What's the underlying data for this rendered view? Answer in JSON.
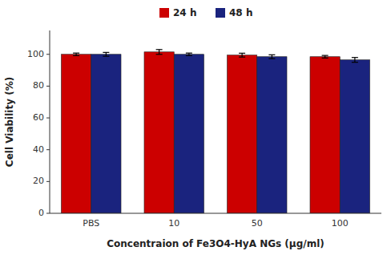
{
  "chart_data": {
    "type": "bar",
    "xlabel": "Concentraion of Fe3O4-HyA NGs (μg/ml)",
    "ylabel": "Cell Viability (%)",
    "categories": [
      "PBS",
      "10",
      "50",
      "100"
    ],
    "series": [
      {
        "name": "24 h",
        "color": "#CC0000",
        "values": [
          100.0,
          101.5,
          99.5,
          98.5
        ],
        "errors": [
          0.8,
          1.5,
          1.2,
          0.8
        ]
      },
      {
        "name": "48 h",
        "color": "#1A237E",
        "values": [
          100.0,
          100.0,
          98.5,
          96.5
        ],
        "errors": [
          1.2,
          0.8,
          1.2,
          1.5
        ]
      }
    ],
    "ylim": [
      0,
      115
    ],
    "yticks": [
      0,
      20,
      40,
      60,
      80,
      100
    ],
    "legend": "top",
    "grid": false
  }
}
